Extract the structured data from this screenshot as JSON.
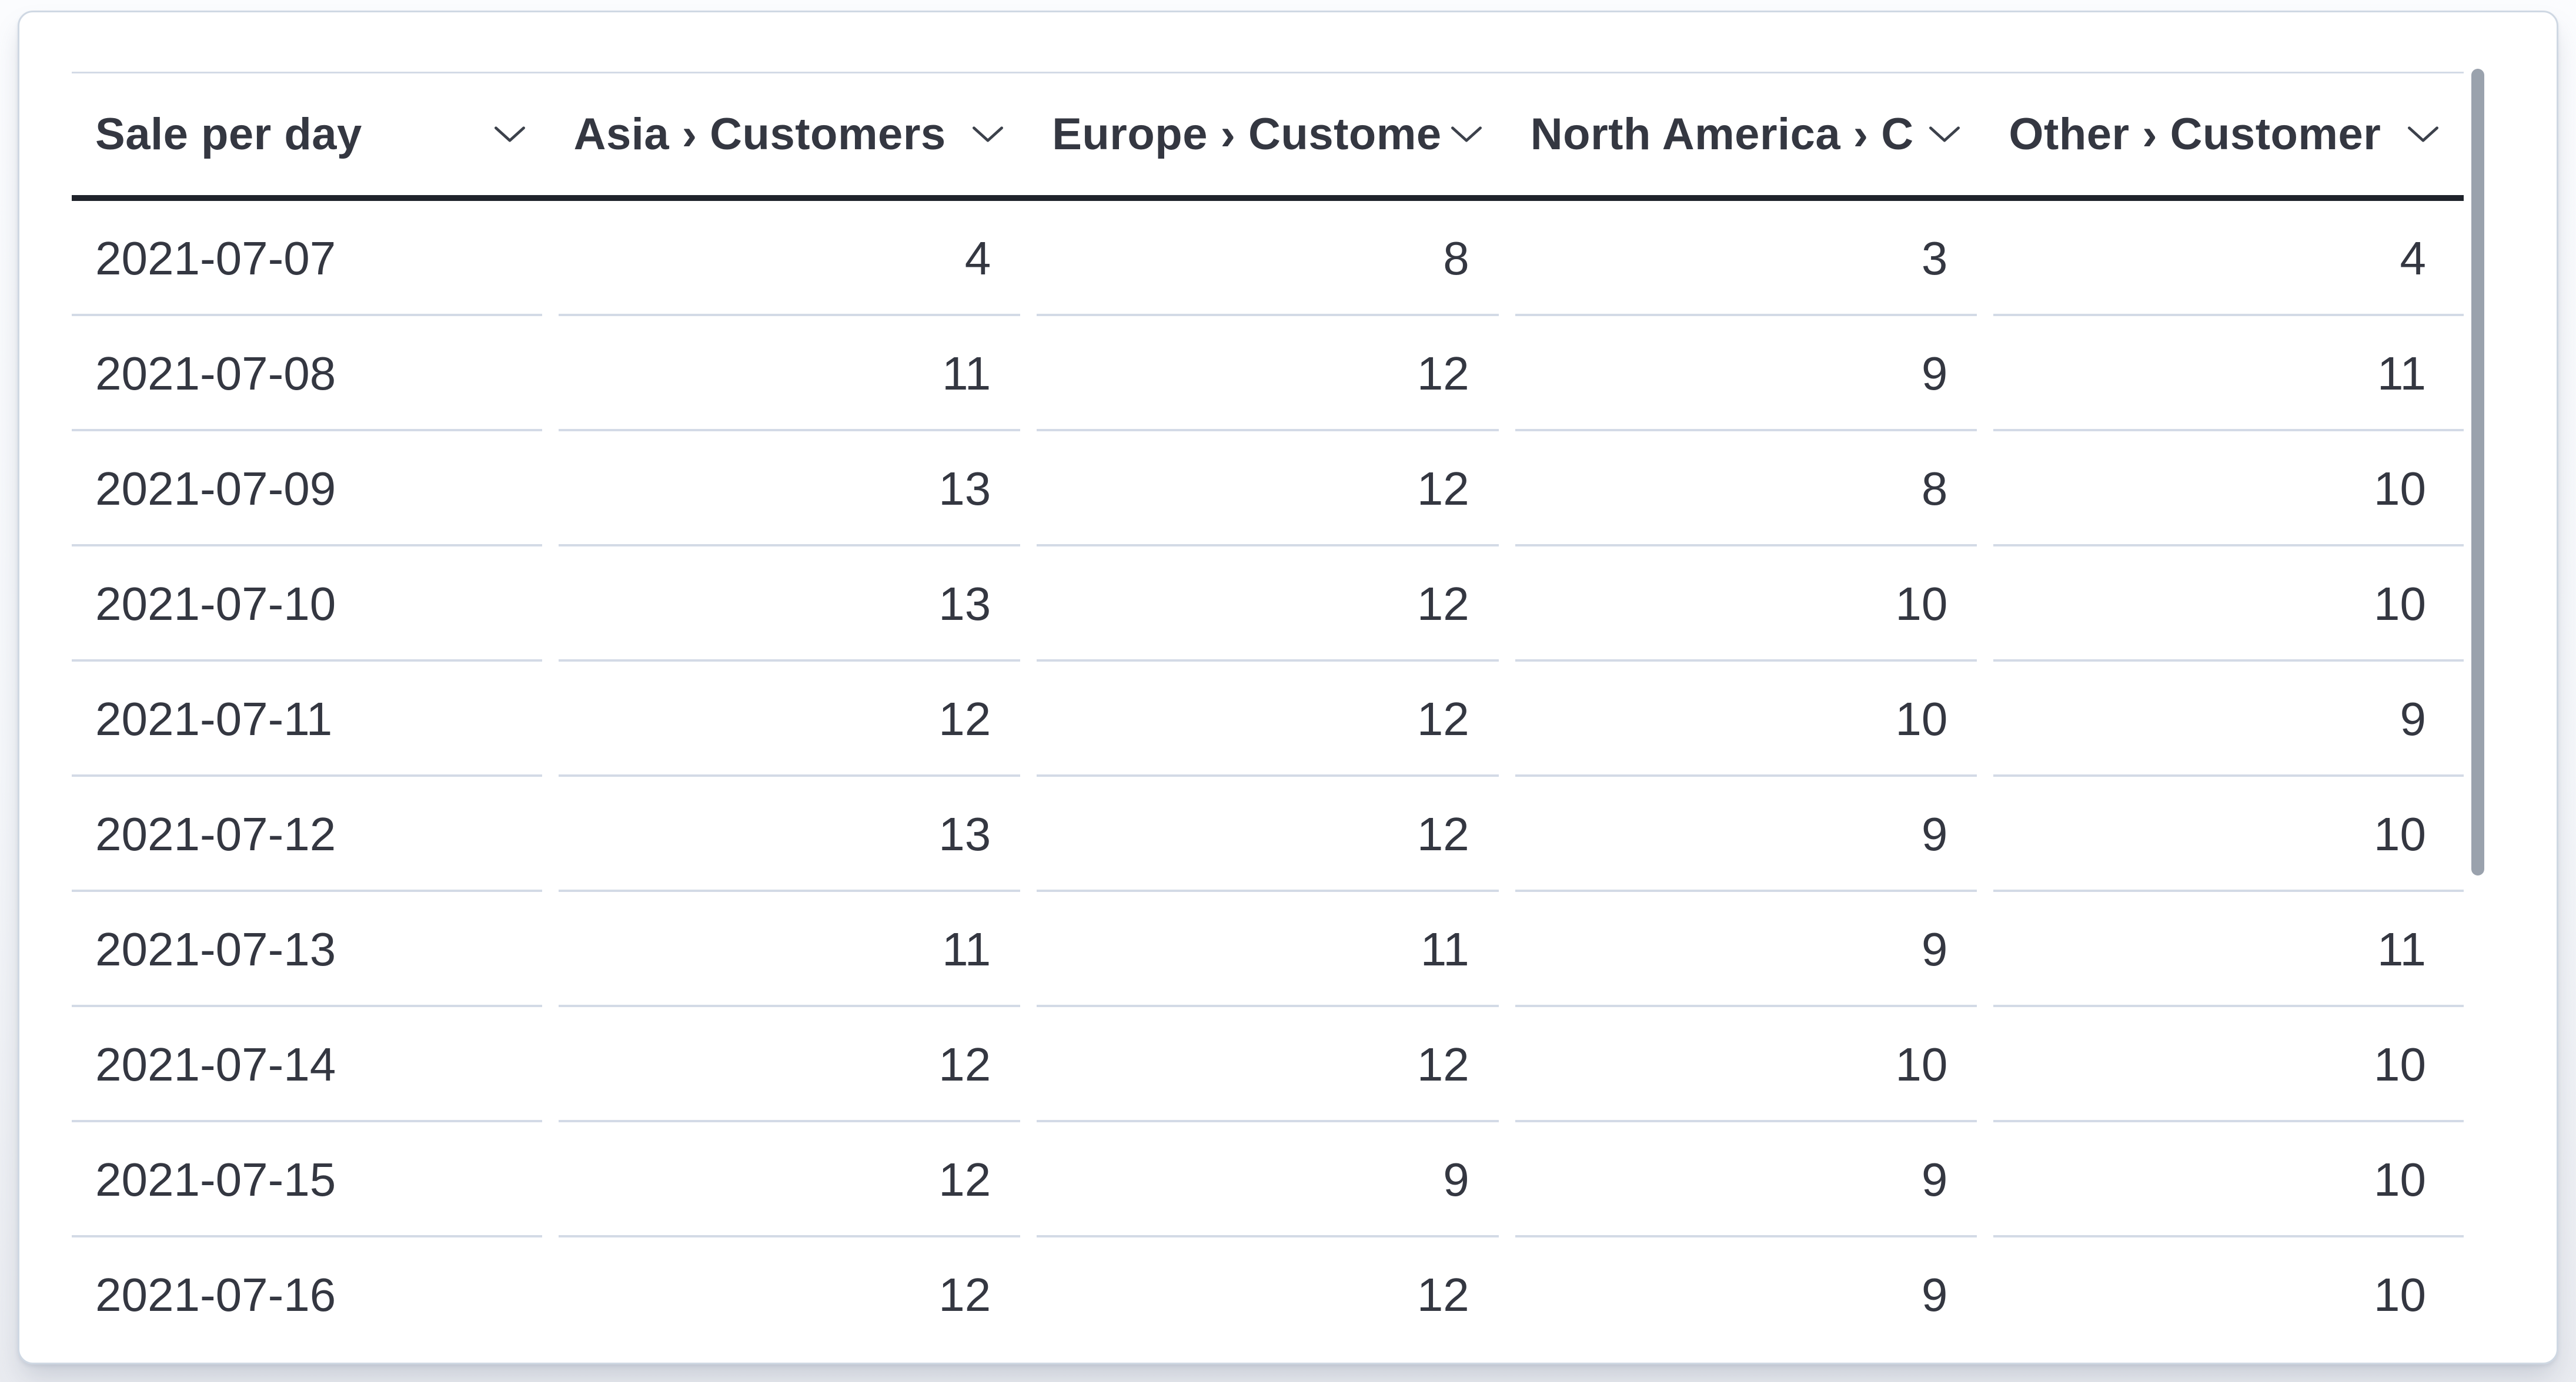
{
  "panel": {
    "type": "data-table-visualization"
  },
  "table": {
    "columns": [
      {
        "id": "sale_per_day",
        "label": "Sale per day",
        "align": "left"
      },
      {
        "id": "asia",
        "label": "Asia › Customers",
        "align": "right"
      },
      {
        "id": "europe",
        "label": "Europe › Customer",
        "align": "right"
      },
      {
        "id": "north_america",
        "label": "North America › C",
        "align": "right"
      },
      {
        "id": "other",
        "label": "Other › Customer",
        "align": "right"
      }
    ],
    "rows": [
      [
        "2021-07-07",
        "4",
        "8",
        "3",
        "4"
      ],
      [
        "2021-07-08",
        "11",
        "12",
        "9",
        "11"
      ],
      [
        "2021-07-09",
        "13",
        "12",
        "8",
        "10"
      ],
      [
        "2021-07-10",
        "13",
        "12",
        "10",
        "10"
      ],
      [
        "2021-07-11",
        "12",
        "12",
        "10",
        "9"
      ],
      [
        "2021-07-12",
        "13",
        "12",
        "9",
        "10"
      ],
      [
        "2021-07-13",
        "11",
        "11",
        "9",
        "11"
      ],
      [
        "2021-07-14",
        "12",
        "12",
        "10",
        "10"
      ],
      [
        "2021-07-15",
        "12",
        "9",
        "9",
        "10"
      ],
      [
        "2021-07-16",
        "12",
        "12",
        "9",
        "10"
      ]
    ]
  },
  "icons": {
    "header_sort": "chevron-down"
  },
  "scrollbar": {
    "orientation": "vertical",
    "position": "top"
  },
  "colors": {
    "text": "#343741",
    "header_underline": "#1f232b",
    "row_separator": "#d3dae6",
    "panel_border": "#cfd8e3",
    "panel_background": "#ffffff",
    "page_background": "#f5f7fa",
    "scrollbar_thumb": "#9aa2ad"
  }
}
